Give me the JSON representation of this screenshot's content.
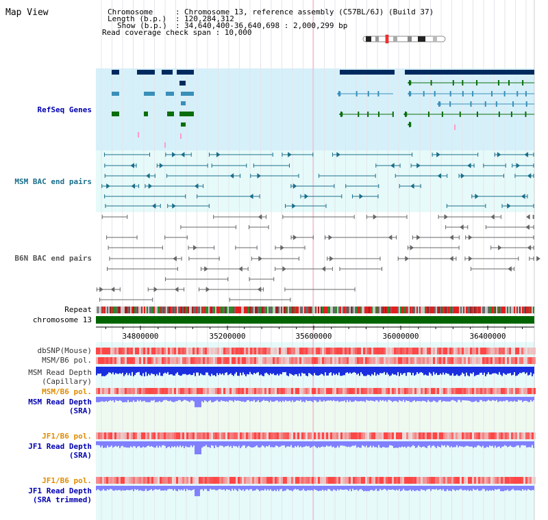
{
  "view_title": "Map View",
  "header": {
    "rows": [
      {
        "key": "Chromosome",
        "sep": ":",
        "value": "Chromosome 13, reference assembly (C57BL/6J) (Build 37)"
      },
      {
        "key": "Length (b.p.)",
        "sep": ":",
        "value": "120,284,312"
      },
      {
        "key": "Show (b.p.)",
        "sep": ":",
        "value": "34,640,400-36,640,698 : 2,000,299 bp"
      }
    ],
    "coverage_line": "Read coverage check span : 10,000"
  },
  "tracks": {
    "refseq": "RefSeq Genes",
    "msm_bac": "MSM BAC end pairs",
    "b6n_bac": "B6N BAC end pairs",
    "repeat": "Repeat",
    "chromosome": "chromosome 13",
    "dbsnp": "dbSNP(Mouse)",
    "msm_b6_pol_1": "MSM/B6 pol.",
    "msm_depth_cap_1": "MSM Read Depth",
    "msm_depth_cap_2": "(Capillary)",
    "msm_b6_pol_2": "MSM/B6 pol.",
    "msm_depth_sra_1": "MSM Read Depth",
    "msm_depth_sra_2": "(SRA)",
    "jf1_b6_pol_1": "JF1/B6 pol.",
    "jf1_depth_sra_1": "JF1 Read Depth",
    "jf1_depth_sra_2": "(SRA)",
    "jf1_b6_pol_2": "JF1/B6 pol.",
    "jf1_depth_trim_1": "JF1 Read Depth",
    "jf1_depth_trim_2": "(SRA trimmed)"
  },
  "axis": {
    "ticks": [
      "34800000",
      "35200000",
      "35600000",
      "36000000",
      "36400000"
    ]
  },
  "colors": {
    "navy": "#002a5e",
    "gene_blue": "#3a8fb8",
    "gene_green": "#0a6e0a",
    "bac_teal": "#1a6e8a",
    "bac_gray": "#666666",
    "chrom_green": "#006400",
    "label_blue": "#0000b0",
    "label_orange": "#e08c00",
    "label_teal": "#1a6e8a",
    "label_gray": "#555555",
    "depth_blue": "#1a2ee0",
    "depth_light": "#8080ff",
    "pol_red": "#e83030",
    "refseq_bg": "#d6f0fa",
    "msm_bg": "#e6fafa"
  }
}
